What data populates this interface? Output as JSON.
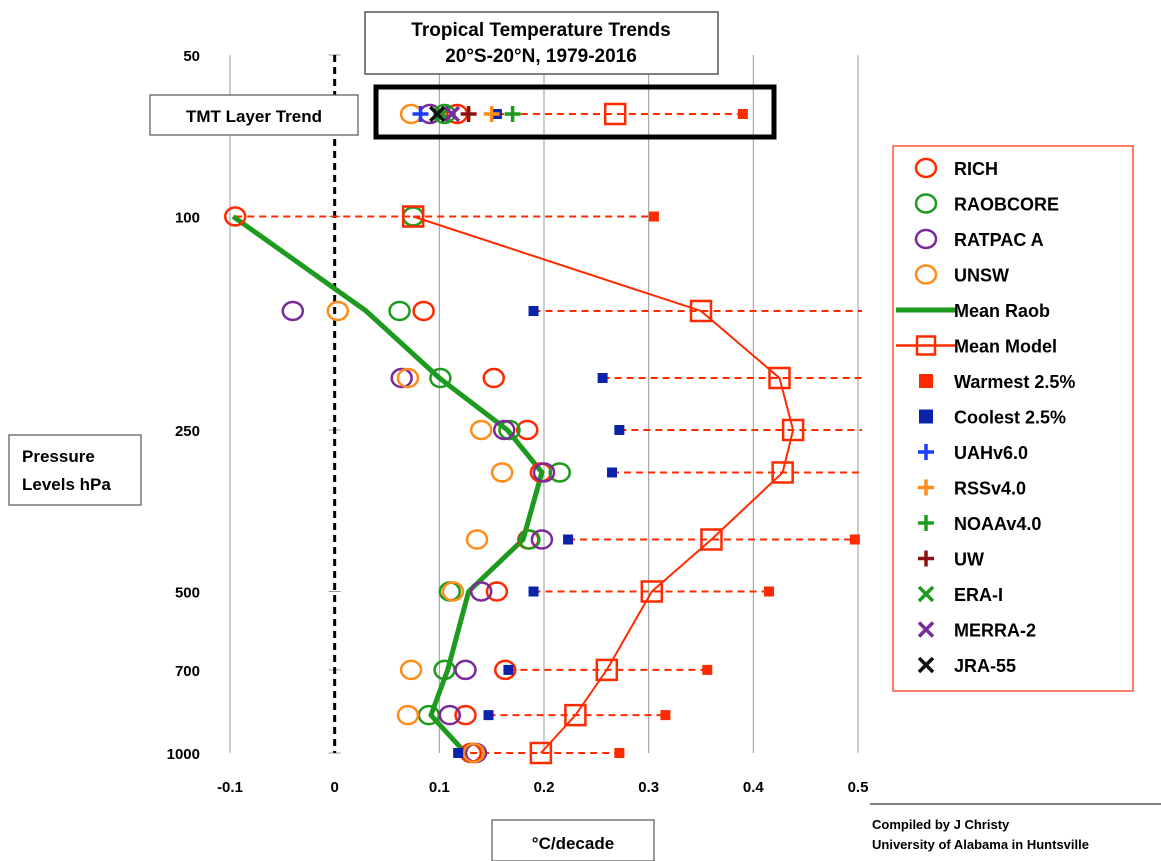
{
  "chart_data": {
    "type": "scatter",
    "title_lines": [
      "Tropical Temperature Trends",
      "20°S-20°N, 1979-2016"
    ],
    "xlabel": "°C/decade",
    "ylabel_lines": [
      "Pressure",
      "Levels hPa"
    ],
    "xlim": [
      -0.1,
      0.5
    ],
    "x_ticks": [
      "-0.1",
      "0",
      "0.1",
      "0.2",
      "0.3",
      "0.4",
      "0.5"
    ],
    "y_scale": "log",
    "y_ticks": [
      "50",
      "100",
      "250",
      "500",
      "700",
      "1000"
    ],
    "y_tick_values": [
      50,
      100,
      250,
      500,
      700,
      1000
    ],
    "levels": [
      100,
      150,
      200,
      250,
      300,
      400,
      500,
      700,
      850,
      1000
    ],
    "series": [
      {
        "name": "RICH",
        "marker": "circle",
        "color": "#ff2a00",
        "values": [
          -0.095,
          0.085,
          0.152,
          0.184,
          0.197,
          0.185,
          0.155,
          0.163,
          0.125,
          0.13
        ]
      },
      {
        "name": "RAOBCORE",
        "marker": "circle",
        "color": "#1e9a1e",
        "values": [
          0.075,
          0.062,
          0.101,
          0.167,
          0.215,
          0.186,
          0.11,
          0.105,
          0.09,
          0.133
        ]
      },
      {
        "name": "RATPAC A",
        "marker": "circle",
        "color": "#7a2a99",
        "values": [
          null,
          -0.04,
          0.064,
          0.162,
          0.2,
          0.198,
          0.14,
          0.125,
          0.11,
          0.135
        ]
      },
      {
        "name": "UNSW",
        "marker": "circle",
        "color": "#ff8c1a",
        "values": [
          null,
          0.003,
          0.07,
          0.14,
          0.16,
          0.136,
          0.113,
          0.073,
          0.07,
          0.133
        ]
      },
      {
        "name": "Mean Raob",
        "marker": "line",
        "color": "#1e9a1e",
        "values": [
          -0.097,
          0.03,
          0.1,
          0.165,
          0.198,
          0.18,
          0.128,
          0.108,
          0.092,
          0.125
        ]
      },
      {
        "name": "Mean Model",
        "marker": "square-line",
        "color": "#ff2a00",
        "values": [
          0.075,
          0.35,
          0.425,
          0.438,
          0.428,
          0.36,
          0.303,
          0.26,
          0.23,
          0.197
        ]
      },
      {
        "name": "Warmest 2.5%",
        "marker": "square-filled",
        "color": "#ff2a00",
        "values": [
          0.305,
          0.51,
          0.51,
          0.51,
          0.51,
          0.497,
          0.415,
          0.356,
          0.316,
          0.272
        ]
      },
      {
        "name": "Coolest 2.5%",
        "marker": "square-filled",
        "color": "#0b23a8",
        "values": [
          null,
          0.19,
          0.256,
          0.272,
          0.265,
          0.223,
          0.19,
          0.166,
          0.147,
          0.118
        ]
      }
    ],
    "tmt_layer": {
      "label": "TMT Layer Trend",
      "range_min": 0.155,
      "range_max": 0.39,
      "mean_model": 0.268,
      "values": [
        {
          "name": "RICH",
          "marker": "circle",
          "color": "#ff2a00",
          "value": 0.117
        },
        {
          "name": "RAOBCORE",
          "marker": "circle",
          "color": "#1e9a1e",
          "value": 0.105
        },
        {
          "name": "RATPAC A",
          "marker": "circle",
          "color": "#7a2a99",
          "value": 0.091
        },
        {
          "name": "UNSW",
          "marker": "circle",
          "color": "#ff8c1a",
          "value": 0.073
        },
        {
          "name": "UAHv6.0",
          "marker": "plus",
          "color": "#1a3cff",
          "value": 0.082
        },
        {
          "name": "RSSv4.0",
          "marker": "plus",
          "color": "#ff8c1a",
          "value": 0.15
        },
        {
          "name": "NOAAv4.0",
          "marker": "plus",
          "color": "#1e9a1e",
          "value": 0.17
        },
        {
          "name": "UW",
          "marker": "plus",
          "color": "#8b1010",
          "value": 0.128
        },
        {
          "name": "ERA-I",
          "marker": "x",
          "color": "#1e9a1e",
          "value": 0.103
        },
        {
          "name": "MERRA-2",
          "marker": "x",
          "color": "#7a2a99",
          "value": 0.112
        },
        {
          "name": "JRA-55",
          "marker": "x",
          "color": "#111111",
          "value": 0.098
        }
      ]
    },
    "legend": {
      "placement": "right",
      "entries": [
        {
          "name": "RICH",
          "marker": "circle",
          "color": "#ff2a00"
        },
        {
          "name": "RAOBCORE",
          "marker": "circle",
          "color": "#1e9a1e"
        },
        {
          "name": "RATPAC A",
          "marker": "circle",
          "color": "#7a2a99"
        },
        {
          "name": "UNSW",
          "marker": "circle",
          "color": "#ff8c1a"
        },
        {
          "name": "Mean Raob",
          "marker": "line",
          "color": "#1e9a1e"
        },
        {
          "name": "Mean Model",
          "marker": "square-line",
          "color": "#ff2a00"
        },
        {
          "name": "Warmest 2.5%",
          "marker": "square-filled",
          "color": "#ff2a00"
        },
        {
          "name": "Coolest 2.5%",
          "marker": "square-filled",
          "color": "#0b23a8"
        },
        {
          "name": "UAHv6.0",
          "marker": "plus",
          "color": "#1a3cff"
        },
        {
          "name": "RSSv4.0",
          "marker": "plus",
          "color": "#ff8c1a"
        },
        {
          "name": "NOAAv4.0",
          "marker": "plus",
          "color": "#1e9a1e"
        },
        {
          "name": "UW",
          "marker": "plus",
          "color": "#8b1010"
        },
        {
          "name": "ERA-I",
          "marker": "x",
          "color": "#1e9a1e"
        },
        {
          "name": "MERRA-2",
          "marker": "x",
          "color": "#7a2a99"
        },
        {
          "name": "JRA-55",
          "marker": "x",
          "color": "#111111"
        }
      ]
    },
    "grid": true,
    "credit_lines": [
      "Compiled by J Christy",
      "University of Alabama in Huntsville"
    ]
  }
}
